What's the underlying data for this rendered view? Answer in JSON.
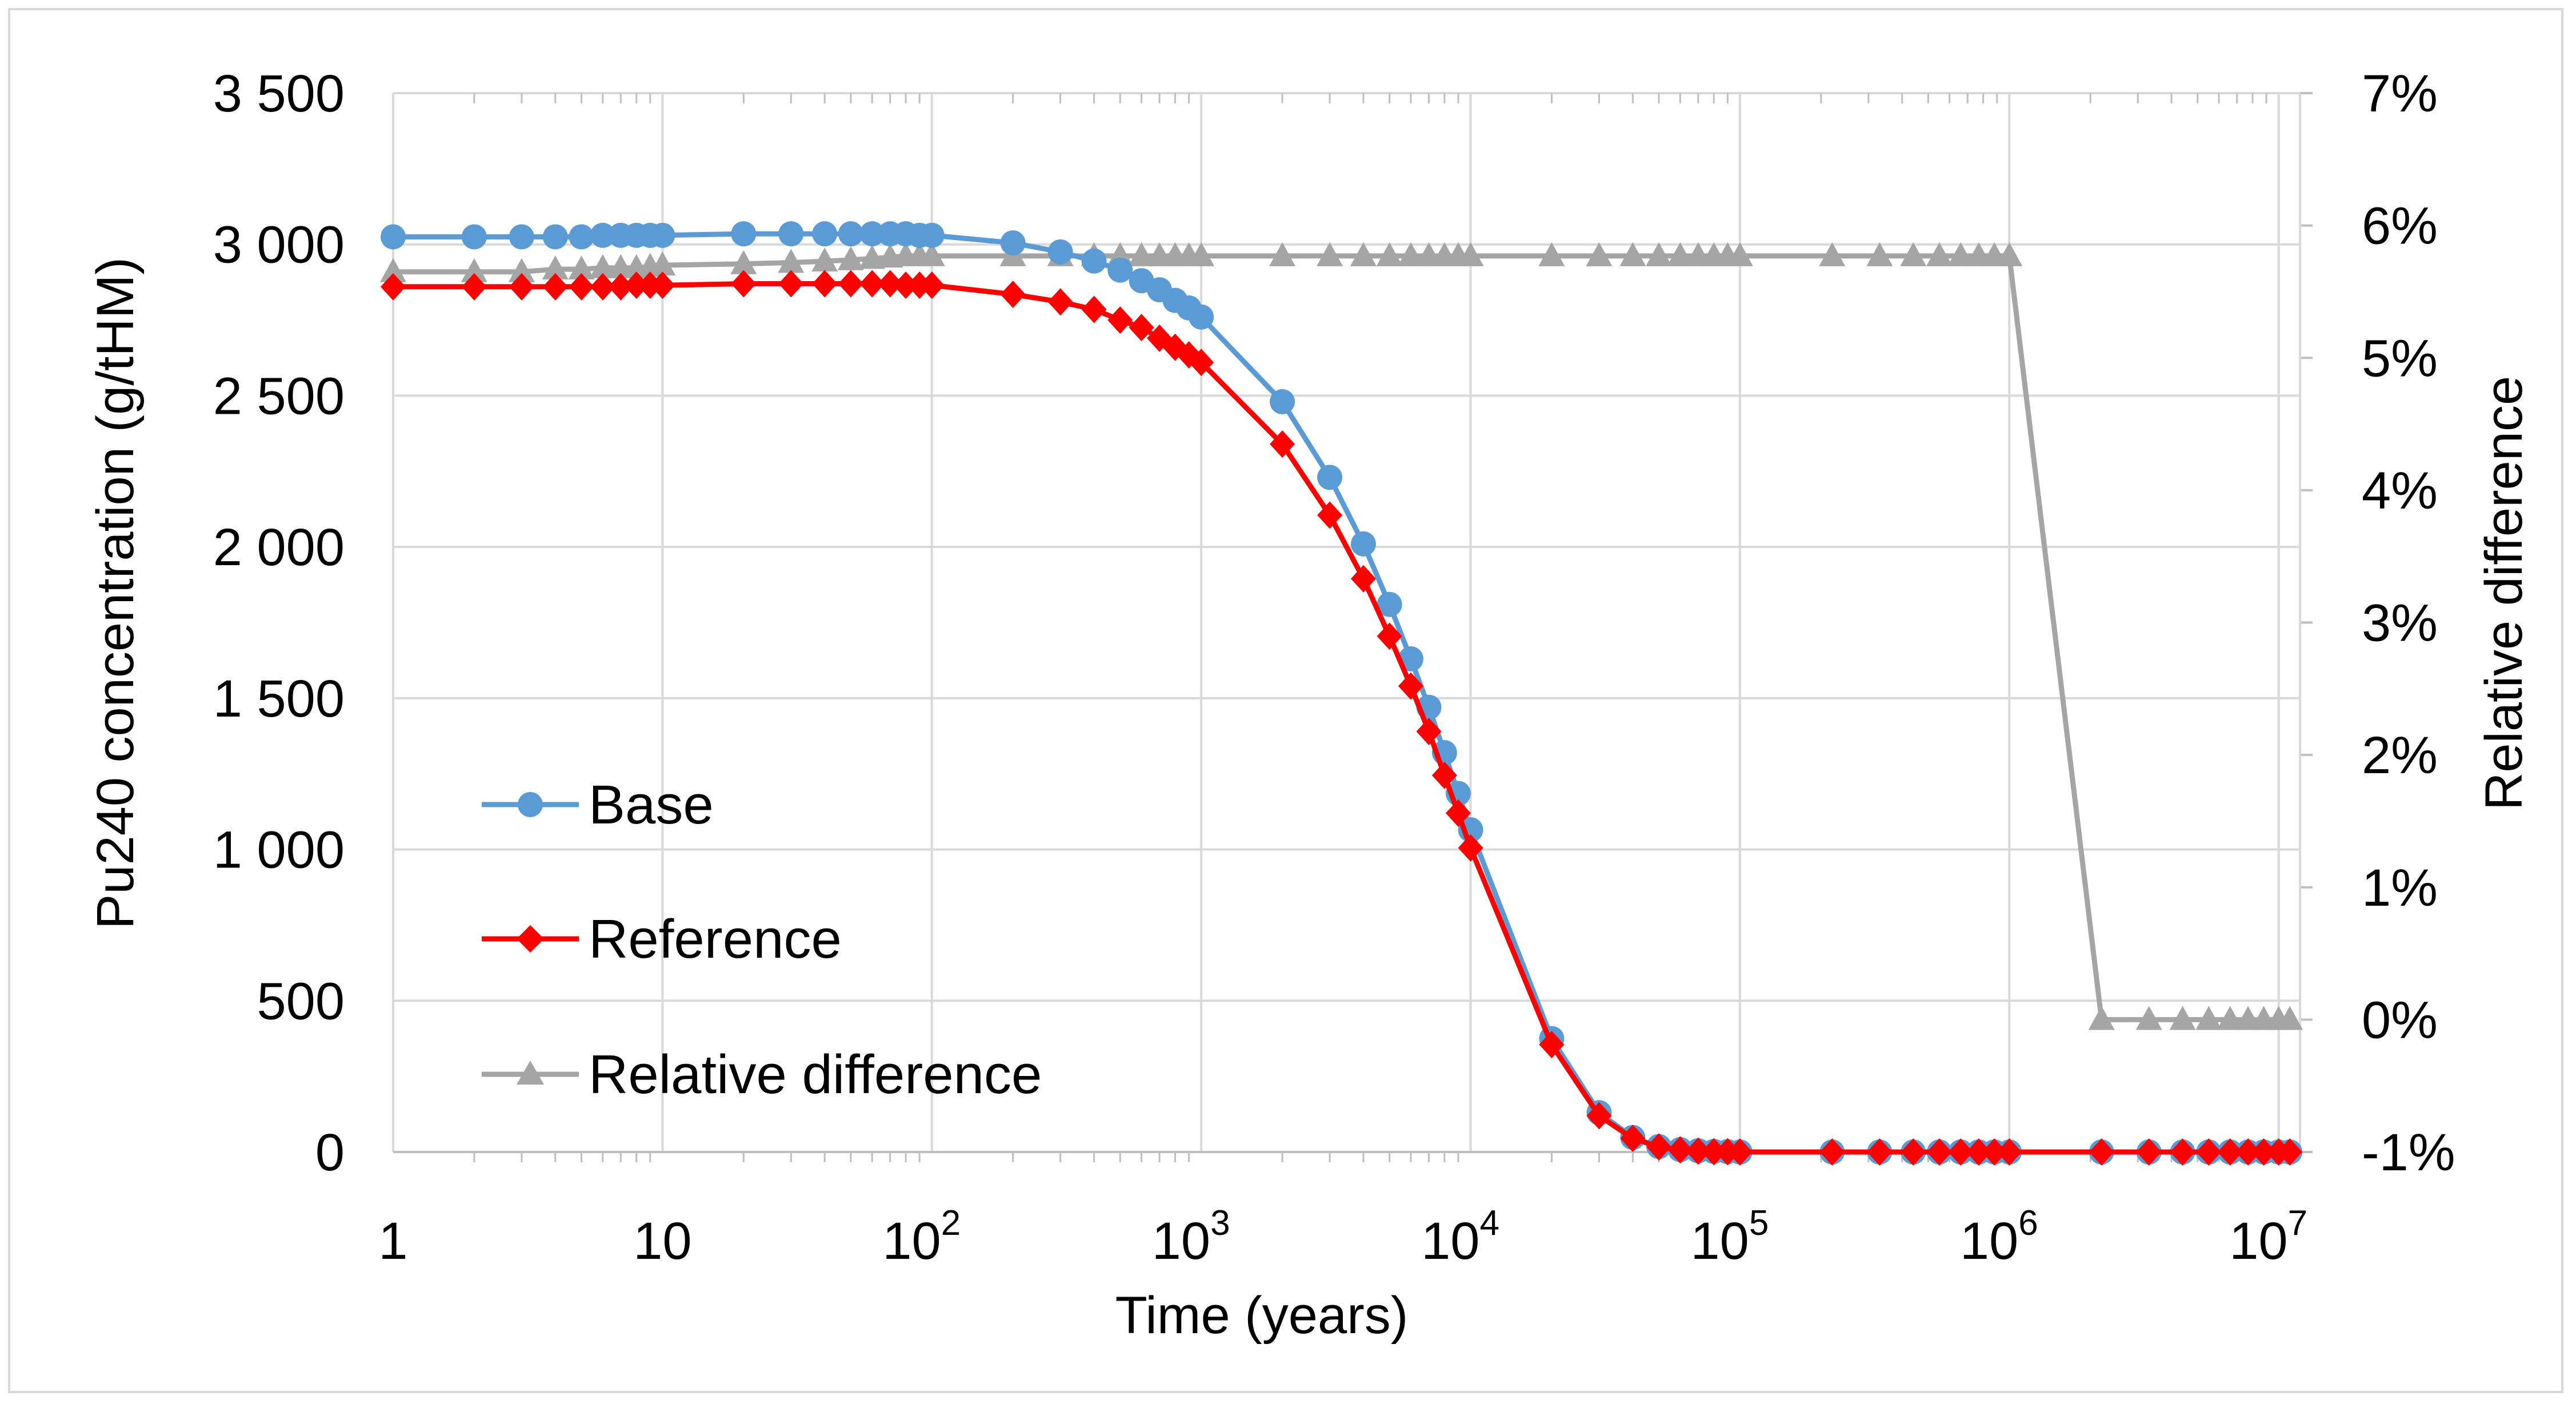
{
  "chart_data": {
    "type": "line",
    "title": "",
    "xlabel": "Time (years)",
    "ylabel": "Pu240 concentration  (g/tHM)",
    "y2label": "Relative difference",
    "x_scale": "log",
    "xlim": [
      1,
      12000000
    ],
    "ylim": [
      0,
      3500
    ],
    "y2lim": [
      -0.01,
      0.07
    ],
    "x_ticks": [
      {
        "value": 1,
        "base": "1",
        "exp": ""
      },
      {
        "value": 10,
        "base": "10",
        "exp": ""
      },
      {
        "value": 100,
        "base": "10",
        "exp": "2"
      },
      {
        "value": 1000,
        "base": "10",
        "exp": "3"
      },
      {
        "value": 10000,
        "base": "10",
        "exp": "4"
      },
      {
        "value": 100000,
        "base": "10",
        "exp": "5"
      },
      {
        "value": 1000000,
        "base": "10",
        "exp": "6"
      },
      {
        "value": 10000000,
        "base": "10",
        "exp": "7"
      }
    ],
    "y_ticks": [
      {
        "value": 0,
        "label": "0"
      },
      {
        "value": 500,
        "label": "500"
      },
      {
        "value": 1000,
        "label": "1 000"
      },
      {
        "value": 1500,
        "label": "1 500"
      },
      {
        "value": 2000,
        "label": "2 000"
      },
      {
        "value": 2500,
        "label": "2 500"
      },
      {
        "value": 3000,
        "label": "3 000"
      },
      {
        "value": 3500,
        "label": "3 500"
      }
    ],
    "y2_ticks": [
      {
        "value": -0.01,
        "label": "-1%"
      },
      {
        "value": 0.0,
        "label": "0%"
      },
      {
        "value": 0.01,
        "label": "1%"
      },
      {
        "value": 0.02,
        "label": "2%"
      },
      {
        "value": 0.03,
        "label": "3%"
      },
      {
        "value": 0.04,
        "label": "4%"
      },
      {
        "value": 0.05,
        "label": "5%"
      },
      {
        "value": 0.06,
        "label": "6%"
      },
      {
        "value": 0.07,
        "label": "7%"
      }
    ],
    "grid": true,
    "legend_position": "left",
    "series": [
      {
        "name": "Base",
        "color": "#5b9bd5",
        "marker": "circle",
        "axis": "y",
        "x": [
          1,
          2,
          3,
          4,
          5,
          6,
          7,
          8,
          9,
          10,
          20,
          30,
          40,
          50,
          60,
          70,
          80,
          90,
          100,
          200,
          300,
          400,
          500,
          600,
          700,
          800,
          900,
          1000,
          2000,
          3000,
          4000,
          5000,
          6000,
          7000,
          8000,
          9000,
          10000,
          20000,
          30000,
          40000,
          50000,
          60000,
          70000,
          80000,
          90000,
          100000,
          220000,
          330000,
          440000,
          550000,
          660000,
          770000,
          880000,
          1000000,
          2200000,
          3300000,
          4400000,
          5500000,
          6600000,
          7700000,
          8800000,
          10000000,
          11000000
        ],
        "values": [
          3025,
          3025,
          3025,
          3025,
          3025,
          3030,
          3030,
          3030,
          3030,
          3030,
          3035,
          3035,
          3035,
          3035,
          3035,
          3035,
          3035,
          3030,
          3030,
          3005,
          2975,
          2945,
          2915,
          2880,
          2850,
          2815,
          2790,
          2760,
          2480,
          2230,
          2010,
          1810,
          1630,
          1470,
          1320,
          1185,
          1065,
          375,
          130,
          48,
          18,
          8,
          4,
          2,
          1,
          0,
          0,
          0,
          0,
          0,
          0,
          0,
          0,
          0,
          0,
          0,
          0,
          0,
          0,
          0,
          0,
          0,
          0
        ]
      },
      {
        "name": "Reference",
        "color": "#ff0000",
        "marker": "diamond",
        "axis": "y",
        "x": [
          1,
          2,
          3,
          4,
          5,
          6,
          7,
          8,
          9,
          10,
          20,
          30,
          40,
          50,
          60,
          70,
          80,
          90,
          100,
          200,
          300,
          400,
          500,
          600,
          700,
          800,
          900,
          1000,
          2000,
          3000,
          4000,
          5000,
          6000,
          7000,
          8000,
          9000,
          10000,
          20000,
          30000,
          40000,
          50000,
          60000,
          70000,
          80000,
          90000,
          100000,
          220000,
          330000,
          440000,
          550000,
          660000,
          770000,
          880000,
          1000000,
          2200000,
          3300000,
          4400000,
          5500000,
          6600000,
          7700000,
          8800000,
          10000000,
          11000000
        ],
        "values": [
          2860,
          2860,
          2860,
          2860,
          2860,
          2860,
          2860,
          2865,
          2865,
          2865,
          2870,
          2870,
          2870,
          2870,
          2870,
          2870,
          2865,
          2865,
          2865,
          2835,
          2810,
          2785,
          2750,
          2725,
          2690,
          2660,
          2635,
          2610,
          2340,
          2105,
          1895,
          1705,
          1540,
          1390,
          1245,
          1120,
          1005,
          355,
          120,
          45,
          17,
          7,
          3,
          1,
          1,
          0,
          0,
          0,
          0,
          0,
          0,
          0,
          0,
          0,
          0,
          0,
          0,
          0,
          0,
          0,
          0,
          0,
          0
        ]
      },
      {
        "name": "Relative difference",
        "color": "#a5a5a5",
        "marker": "triangle",
        "axis": "y2",
        "x": [
          1,
          2,
          3,
          4,
          5,
          6,
          7,
          8,
          9,
          10,
          20,
          30,
          40,
          50,
          60,
          70,
          80,
          90,
          100,
          200,
          300,
          400,
          500,
          600,
          700,
          800,
          900,
          1000,
          2000,
          3000,
          4000,
          5000,
          6000,
          7000,
          8000,
          9000,
          10000,
          20000,
          30000,
          40000,
          50000,
          60000,
          70000,
          80000,
          90000,
          100000,
          220000,
          330000,
          440000,
          550000,
          660000,
          770000,
          880000,
          1000000,
          2200000,
          3300000,
          4400000,
          5500000,
          6600000,
          7700000,
          8800000,
          10000000,
          11000000
        ],
        "values": [
          0.0565,
          0.0565,
          0.0565,
          0.0567,
          0.0567,
          0.0568,
          0.0568,
          0.0568,
          0.0569,
          0.057,
          0.0571,
          0.0572,
          0.0573,
          0.0574,
          0.0575,
          0.0576,
          0.0577,
          0.0577,
          0.0577,
          0.0577,
          0.0577,
          0.0577,
          0.0577,
          0.0577,
          0.0577,
          0.0577,
          0.0577,
          0.0577,
          0.0577,
          0.0577,
          0.0577,
          0.0577,
          0.0577,
          0.0577,
          0.0577,
          0.0577,
          0.0577,
          0.0577,
          0.0577,
          0.0577,
          0.0577,
          0.0577,
          0.0577,
          0.0577,
          0.0577,
          0.0577,
          0.0577,
          0.0577,
          0.0577,
          0.0577,
          0.0577,
          0.0577,
          0.0577,
          0.0577,
          0.0,
          0.0,
          0.0,
          0.0,
          0.0,
          0.0,
          0.0,
          0.0,
          0.0
        ]
      }
    ]
  }
}
